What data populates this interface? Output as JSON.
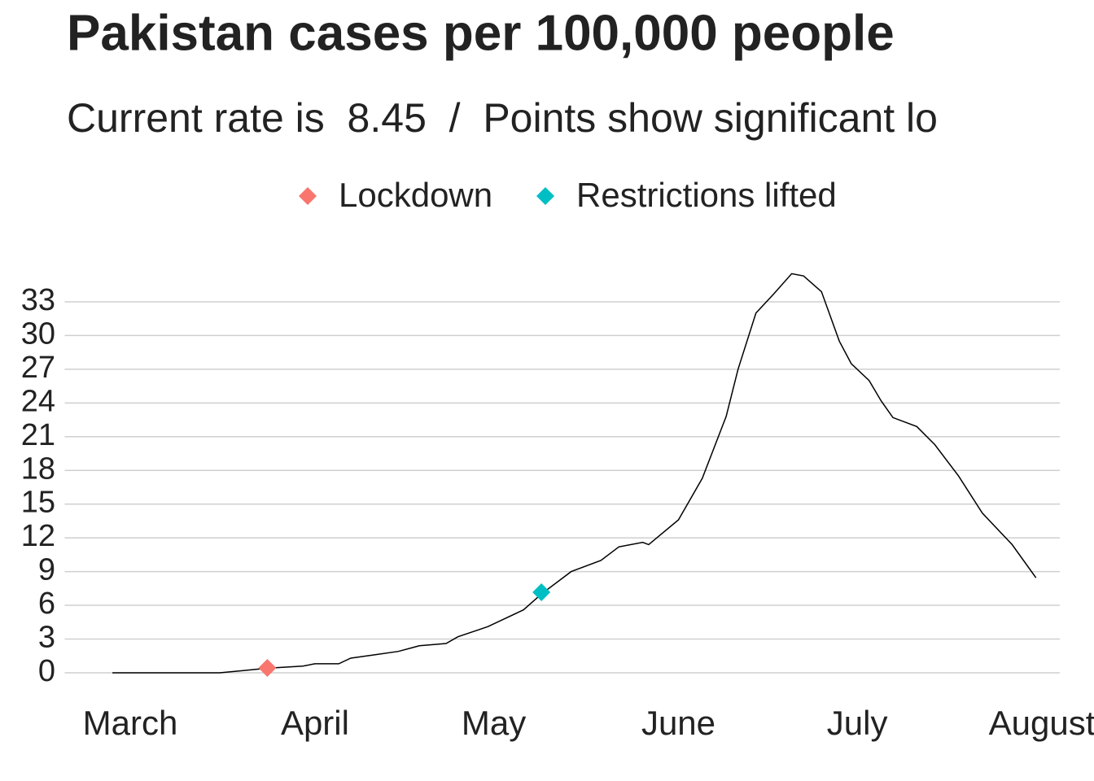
{
  "chart_data": {
    "type": "line",
    "title": "Pakistan cases per 100,000 people",
    "subtitle": "Current rate is  8.45  /  Points show significant lo",
    "x": [
      58,
      76,
      80,
      84,
      90,
      92,
      96,
      98,
      102,
      106,
      109.5,
      114,
      116,
      121,
      127,
      130,
      135,
      140,
      143,
      147,
      148,
      153,
      157,
      161,
      163,
      166,
      169,
      172,
      174,
      177,
      180,
      182,
      185,
      187,
      189,
      193,
      196,
      200,
      204,
      209,
      213
    ],
    "values": [
      0,
      0,
      0.2,
      0.4,
      0.6,
      0.8,
      0.8,
      1.3,
      1.6,
      1.9,
      2.4,
      2.6,
      3.2,
      4.1,
      5.6,
      7.0,
      9.0,
      10.0,
      11.2,
      11.6,
      11.4,
      13.6,
      17.3,
      22.8,
      27.0,
      32.0,
      33.7,
      35.5,
      35.3,
      33.9,
      29.5,
      27.5,
      26.0,
      24.2,
      22.7,
      21.9,
      20.3,
      17.5,
      14.2,
      11.4,
      8.45
    ],
    "color": "#000000",
    "points": [
      {
        "name": "Lockdown",
        "color": "#f8766d",
        "x": 84,
        "value": 0.43
      },
      {
        "name": "Restrictions lifted",
        "color": "#00bfc4",
        "x": 130,
        "value": 7.16
      }
    ],
    "xlim": [
      50,
      217
    ],
    "xticks": [
      {
        "value": 61,
        "label": "March"
      },
      {
        "value": 92,
        "label": "April"
      },
      {
        "value": 122,
        "label": "May"
      },
      {
        "value": 153,
        "label": "June"
      },
      {
        "value": 183,
        "label": "July"
      },
      {
        "value": 214,
        "label": "August"
      }
    ],
    "ylim": [
      -2,
      36
    ],
    "yticks": [
      0,
      3,
      6,
      9,
      12,
      15,
      18,
      21,
      24,
      27,
      30,
      33
    ],
    "grid": true,
    "legend": "top"
  }
}
